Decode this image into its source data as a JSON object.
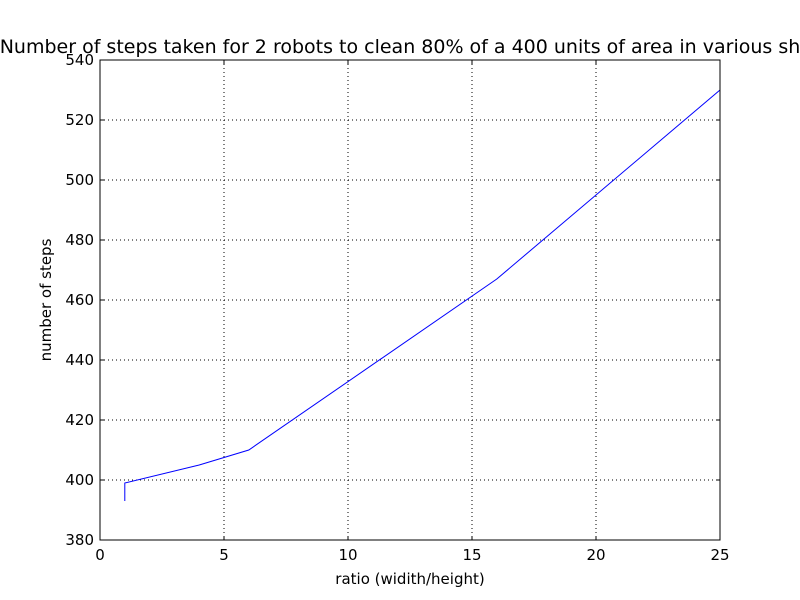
{
  "chart_data": {
    "type": "line",
    "title": "Number of steps taken for 2 robots to clean 80% of a 400 units of area in various sh",
    "xlabel": "ratio (widith/height)",
    "ylabel": "number of steps",
    "xlim": [
      0,
      25
    ],
    "ylim": [
      380,
      540
    ],
    "xticks": [
      0,
      5,
      10,
      15,
      20,
      25
    ],
    "yticks": [
      380,
      400,
      420,
      440,
      460,
      480,
      500,
      520,
      540
    ],
    "grid": true,
    "line_color": "#0000ff",
    "series": [
      {
        "x": [
          1,
          1,
          1,
          4,
          6,
          16,
          25
        ],
        "y": [
          393,
          399,
          399,
          405,
          410,
          467,
          530
        ]
      }
    ]
  }
}
